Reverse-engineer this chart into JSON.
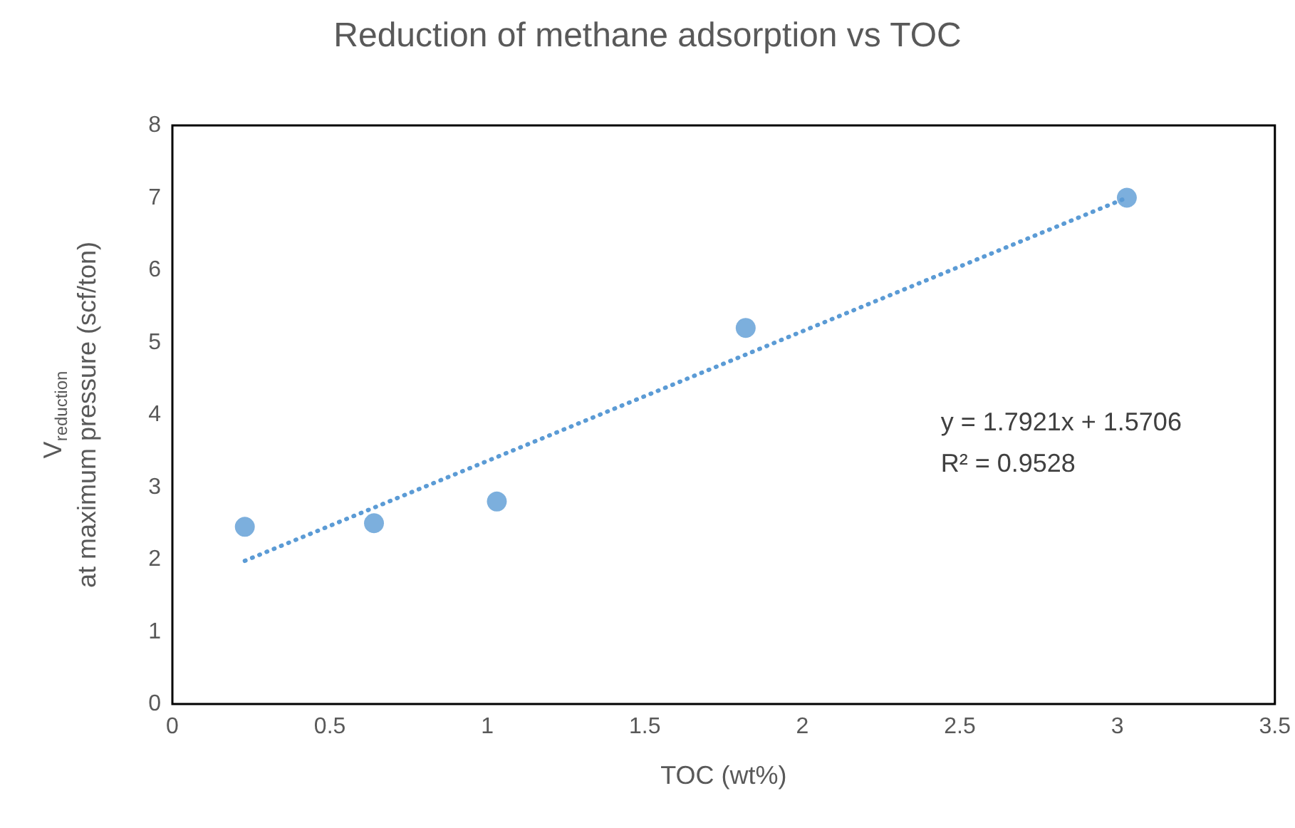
{
  "chart_data": {
    "type": "scatter",
    "title": "Reduction of methane adsorption vs TOC",
    "xlabel": "TOC (wt%)",
    "ylabel": "V$_{reduction}$\nat maximum pressure (scf/ton)",
    "x": [
      0.23,
      0.64,
      1.03,
      1.82,
      3.03
    ],
    "series": [
      {
        "color": "#5b9bd5",
        "values": [
          2.45,
          2.5,
          2.8,
          5.2,
          7.0
        ],
        "marker": "circle"
      },
      {
        "type": "line",
        "color": "#5b9bd5",
        "x": [
          0.23,
          3.03
        ],
        "values": [
          1.98,
          7.0
        ],
        "line_style": "dotted",
        "marker": "none"
      }
    ],
    "annotations": [
      "y = 1.7921x + 1.5706",
      "R² = 0.9528"
    ],
    "xlim": [
      0,
      3.5
    ],
    "xticks": [
      0,
      0.5,
      1,
      1.5,
      2,
      2.5,
      3,
      3.5
    ],
    "ylim": [
      0,
      8
    ],
    "yticks": [
      0,
      1,
      2,
      3,
      4,
      5,
      6,
      7,
      8
    ],
    "grid": false
  }
}
